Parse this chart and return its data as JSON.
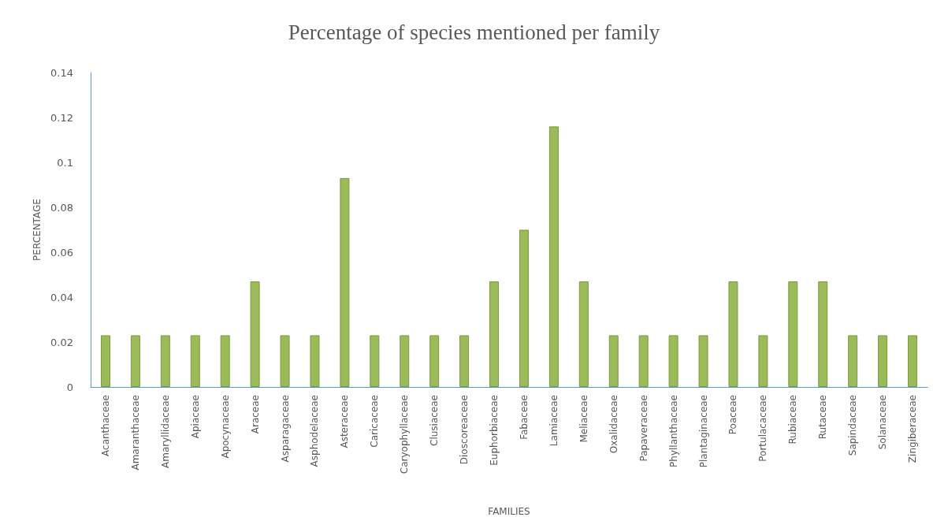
{
  "chart_data": {
    "type": "bar",
    "title": "Percentage of species mentioned per family",
    "xlabel": "FAMILIES",
    "ylabel": "PERCENTAGE",
    "categories": [
      "Acanthaceae",
      "Amaranthaceae",
      "Amaryllidaceae",
      "Apiaceae",
      "Apocynaceae",
      "Araceae",
      "Asparagaceae",
      "Asphodelaceae",
      "Asteraceae",
      "Caricaceae",
      "Caryophyllaceae",
      "Clusiaceae",
      "Dioscoreaceae",
      "Euphorbiaceae",
      "Fabaceae",
      "Lamiaceae",
      "Meliaceae",
      "Oxalidaceae",
      "Papaveraceae",
      "Phyllanthaceae",
      "Plantaginaceae",
      "Poaceae",
      "Portulacaceae",
      "Rubiaceae",
      "Rutaceae",
      "Sapindaceae",
      "Solanaceae",
      "Zingiberaceae"
    ],
    "values": [
      0.023,
      0.023,
      0.023,
      0.023,
      0.023,
      0.047,
      0.023,
      0.023,
      0.093,
      0.023,
      0.023,
      0.023,
      0.023,
      0.047,
      0.07,
      0.116,
      0.047,
      0.023,
      0.023,
      0.023,
      0.023,
      0.047,
      0.023,
      0.047,
      0.047,
      0.023,
      0.023,
      0.023
    ],
    "color": "#9bbb59",
    "ylim": [
      0,
      0.14
    ],
    "yticks": [
      0,
      0.02,
      0.04,
      0.06,
      0.08,
      0.1,
      0.12,
      0.14
    ],
    "grid": false
  }
}
